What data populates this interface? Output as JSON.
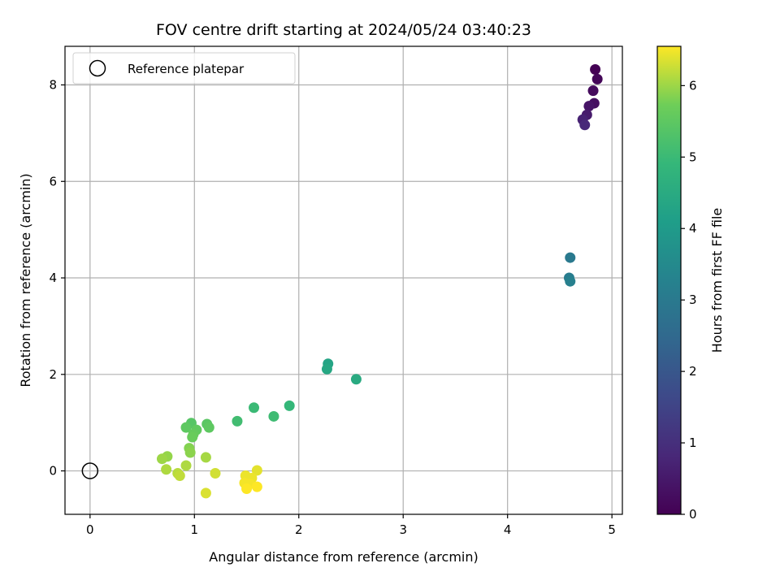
{
  "chart_data": {
    "type": "scatter",
    "title": "FOV centre drift starting at 2024/05/24 03:40:23",
    "xlabel": "Angular distance from reference (arcmin)",
    "ylabel": "Rotation from reference (arcmin)",
    "xlim": [
      -0.24,
      5.1
    ],
    "ylim": [
      -0.9,
      8.8
    ],
    "xticks": [
      0,
      1,
      2,
      3,
      4,
      5
    ],
    "yticks": [
      0,
      2,
      4,
      6,
      8
    ],
    "grid": true,
    "legend": {
      "position": "top-left",
      "entries": [
        "Reference platepar"
      ]
    },
    "reference_point": {
      "x": 0,
      "y": 0,
      "label": "Reference platepar"
    },
    "colorbar": {
      "label": "Hours from first FF file",
      "colormap": "viridis",
      "range": [
        0,
        6.55
      ],
      "ticks": [
        0,
        1,
        2,
        3,
        4,
        5,
        6
      ]
    },
    "points": [
      {
        "x": 4.84,
        "y": 8.32,
        "c": 0.0
      },
      {
        "x": 4.86,
        "y": 8.12,
        "c": 0.1
      },
      {
        "x": 4.82,
        "y": 7.88,
        "c": 0.2
      },
      {
        "x": 4.83,
        "y": 7.62,
        "c": 0.3
      },
      {
        "x": 4.78,
        "y": 7.56,
        "c": 0.4
      },
      {
        "x": 4.76,
        "y": 7.38,
        "c": 0.55
      },
      {
        "x": 4.72,
        "y": 7.28,
        "c": 0.7
      },
      {
        "x": 4.74,
        "y": 7.17,
        "c": 0.85
      },
      {
        "x": 4.6,
        "y": 4.42,
        "c": 3.0
      },
      {
        "x": 4.59,
        "y": 4.0,
        "c": 3.1
      },
      {
        "x": 4.6,
        "y": 3.93,
        "c": 3.2
      },
      {
        "x": 2.28,
        "y": 2.22,
        "c": 4.3
      },
      {
        "x": 2.27,
        "y": 2.11,
        "c": 4.4
      },
      {
        "x": 2.55,
        "y": 1.9,
        "c": 4.5
      },
      {
        "x": 1.91,
        "y": 1.35,
        "c": 4.9
      },
      {
        "x": 1.57,
        "y": 1.31,
        "c": 5.0
      },
      {
        "x": 1.76,
        "y": 1.13,
        "c": 5.05
      },
      {
        "x": 1.41,
        "y": 1.03,
        "c": 5.1
      },
      {
        "x": 0.97,
        "y": 0.99,
        "c": 5.4
      },
      {
        "x": 1.12,
        "y": 0.97,
        "c": 5.45
      },
      {
        "x": 0.92,
        "y": 0.9,
        "c": 5.5
      },
      {
        "x": 1.14,
        "y": 0.9,
        "c": 5.5
      },
      {
        "x": 1.02,
        "y": 0.85,
        "c": 5.55
      },
      {
        "x": 0.99,
        "y": 0.76,
        "c": 5.6
      },
      {
        "x": 0.98,
        "y": 0.7,
        "c": 5.65
      },
      {
        "x": 0.95,
        "y": 0.47,
        "c": 5.85
      },
      {
        "x": 0.96,
        "y": 0.38,
        "c": 5.9
      },
      {
        "x": 0.74,
        "y": 0.3,
        "c": 5.95
      },
      {
        "x": 0.69,
        "y": 0.25,
        "c": 6.0
      },
      {
        "x": 1.11,
        "y": 0.28,
        "c": 6.05
      },
      {
        "x": 0.92,
        "y": 0.11,
        "c": 6.1
      },
      {
        "x": 0.73,
        "y": 0.03,
        "c": 6.1
      },
      {
        "x": 0.84,
        "y": -0.05,
        "c": 6.15
      },
      {
        "x": 0.86,
        "y": -0.1,
        "c": 6.2
      },
      {
        "x": 1.2,
        "y": -0.05,
        "c": 6.3
      },
      {
        "x": 1.11,
        "y": -0.46,
        "c": 6.35
      },
      {
        "x": 1.6,
        "y": 0.01,
        "c": 6.4
      },
      {
        "x": 1.49,
        "y": -0.1,
        "c": 6.45
      },
      {
        "x": 1.55,
        "y": -0.15,
        "c": 6.45
      },
      {
        "x": 1.48,
        "y": -0.25,
        "c": 6.5
      },
      {
        "x": 1.53,
        "y": -0.27,
        "c": 6.5
      },
      {
        "x": 1.6,
        "y": -0.33,
        "c": 6.55
      },
      {
        "x": 1.5,
        "y": -0.37,
        "c": 6.55
      }
    ]
  }
}
